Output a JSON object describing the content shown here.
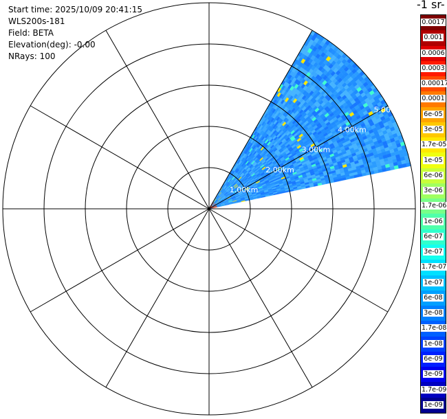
{
  "info": {
    "start_time": "Start time: 2025/10/09 20:41:15",
    "instrument": "WLS200s-181",
    "field": "Field: BETA",
    "elevation": "Elevation(deg): -0.00",
    "nrays": "NRays: 100"
  },
  "colorbar": {
    "title": "-1 sr-",
    "levels": [
      {
        "label": "0.0017",
        "color": "#7f0000"
      },
      {
        "label": "0.001",
        "color": "#b00000"
      },
      {
        "label": "0.0006",
        "color": "#e00000"
      },
      {
        "label": "0.0003",
        "color": "#ff1a00"
      },
      {
        "label": "0.00017",
        "color": "#ff4a00"
      },
      {
        "label": "0.0001",
        "color": "#ff7a00"
      },
      {
        "label": "6e-05",
        "color": "#ffa400"
      },
      {
        "label": "3e-05",
        "color": "#ffc800"
      },
      {
        "label": "1.7e-05",
        "color": "#ffe800"
      },
      {
        "label": "1e-05",
        "color": "#f0ff10"
      },
      {
        "label": "6e-06",
        "color": "#c8ff3a"
      },
      {
        "label": "3e-06",
        "color": "#a0ff60"
      },
      {
        "label": "1.7e-06",
        "color": "#78ff88"
      },
      {
        "label": "1e-06",
        "color": "#50ffaa"
      },
      {
        "label": "6e-07",
        "color": "#30ffcc"
      },
      {
        "label": "3e-07",
        "color": "#14ffee"
      },
      {
        "label": "1.7e-07",
        "color": "#00e0ff"
      },
      {
        "label": "1e-07",
        "color": "#00c0ff"
      },
      {
        "label": "6e-08",
        "color": "#00a0ff"
      },
      {
        "label": "3e-08",
        "color": "#0080ff"
      },
      {
        "label": "1.7e-08",
        "color": "#0060ff"
      },
      {
        "label": "1e-08",
        "color": "#0040ff"
      },
      {
        "label": "6e-09",
        "color": "#0020ff"
      },
      {
        "label": "3e-09",
        "color": "#0000f0"
      },
      {
        "label": "1.7e-09",
        "color": "#0000c0"
      },
      {
        "label": "1e-09",
        "color": "#000090"
      }
    ]
  },
  "plot": {
    "range_ring_labels": [
      "1.00km",
      "2.00km",
      "3.00km",
      "4.00km",
      "5.00km"
    ],
    "scan_sector": {
      "az_start_deg": 30,
      "az_end_deg": 78,
      "max_range_km": 5.0
    },
    "grid_spokes_every_deg": 30
  }
}
